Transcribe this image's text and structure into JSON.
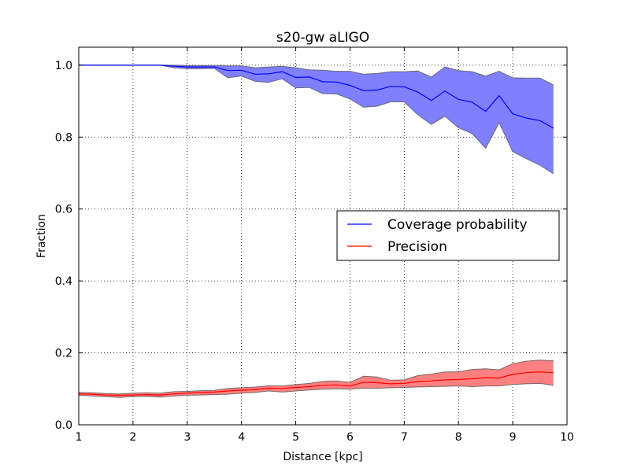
{
  "chart_data": {
    "type": "line",
    "title": "s20-gw aLIGO",
    "xlabel": "Distance [kpc]",
    "ylabel": "Fraction",
    "xlim": [
      1,
      10
    ],
    "ylim": [
      0.0,
      1.05
    ],
    "xticks": [
      "1",
      "2",
      "3",
      "4",
      "5",
      "6",
      "7",
      "8",
      "9",
      "10"
    ],
    "yticks": [
      "0.0",
      "0.2",
      "0.4",
      "0.6",
      "0.8",
      "1.0"
    ],
    "grid": true,
    "legend_position": "center-right",
    "x": [
      1.0,
      1.25,
      1.5,
      1.75,
      2.0,
      2.25,
      2.5,
      2.75,
      3.0,
      3.25,
      3.5,
      3.75,
      4.0,
      4.25,
      4.5,
      4.75,
      5.0,
      5.25,
      5.5,
      5.75,
      6.0,
      6.25,
      6.5,
      6.75,
      7.0,
      7.25,
      7.5,
      7.75,
      8.0,
      8.25,
      8.5,
      8.75,
      9.0,
      9.25,
      9.5,
      9.75
    ],
    "series": [
      {
        "name": "Coverage probability",
        "color": "#0000ff",
        "fill_color": "#8080ff",
        "values": [
          1.0,
          1.0,
          1.0,
          1.0,
          1.0,
          1.0,
          1.0,
          0.997,
          0.995,
          0.995,
          0.995,
          0.985,
          0.986,
          0.975,
          0.976,
          0.982,
          0.966,
          0.967,
          0.954,
          0.953,
          0.944,
          0.929,
          0.931,
          0.941,
          0.94,
          0.925,
          0.902,
          0.928,
          0.905,
          0.897,
          0.872,
          0.915,
          0.865,
          0.853,
          0.846,
          0.825
        ],
        "upper": [
          1.0,
          1.0,
          1.0,
          1.0,
          1.0,
          1.0,
          1.0,
          1.0,
          0.999,
          0.999,
          0.999,
          0.998,
          0.998,
          0.993,
          0.995,
          0.997,
          0.993,
          0.987,
          0.986,
          0.983,
          0.983,
          0.975,
          0.977,
          0.982,
          0.982,
          0.984,
          0.967,
          0.995,
          0.985,
          0.982,
          0.97,
          0.983,
          0.965,
          0.964,
          0.964,
          0.945
        ],
        "lower": [
          1.0,
          1.0,
          1.0,
          1.0,
          1.0,
          1.0,
          1.0,
          0.993,
          0.99,
          0.99,
          0.991,
          0.965,
          0.97,
          0.955,
          0.952,
          0.962,
          0.937,
          0.938,
          0.921,
          0.92,
          0.906,
          0.883,
          0.886,
          0.898,
          0.898,
          0.862,
          0.835,
          0.858,
          0.826,
          0.81,
          0.769,
          0.84,
          0.76,
          0.74,
          0.722,
          0.698
        ]
      },
      {
        "name": "Precision",
        "color": "#ff0000",
        "fill_color": "#ff8080",
        "values": [
          0.086,
          0.085,
          0.083,
          0.082,
          0.083,
          0.084,
          0.083,
          0.086,
          0.088,
          0.09,
          0.091,
          0.094,
          0.096,
          0.098,
          0.102,
          0.101,
          0.104,
          0.106,
          0.11,
          0.111,
          0.108,
          0.118,
          0.117,
          0.114,
          0.115,
          0.12,
          0.122,
          0.125,
          0.126,
          0.128,
          0.131,
          0.13,
          0.14,
          0.145,
          0.147,
          0.145
        ],
        "upper": [
          0.09,
          0.089,
          0.087,
          0.086,
          0.088,
          0.089,
          0.088,
          0.092,
          0.093,
          0.095,
          0.096,
          0.101,
          0.103,
          0.105,
          0.109,
          0.108,
          0.112,
          0.115,
          0.121,
          0.122,
          0.118,
          0.135,
          0.133,
          0.124,
          0.125,
          0.137,
          0.141,
          0.147,
          0.147,
          0.154,
          0.156,
          0.153,
          0.17,
          0.177,
          0.18,
          0.178
        ],
        "lower": [
          0.082,
          0.08,
          0.078,
          0.076,
          0.078,
          0.079,
          0.077,
          0.08,
          0.082,
          0.083,
          0.084,
          0.085,
          0.088,
          0.09,
          0.094,
          0.091,
          0.094,
          0.097,
          0.099,
          0.1,
          0.099,
          0.102,
          0.101,
          0.103,
          0.104,
          0.105,
          0.106,
          0.107,
          0.108,
          0.106,
          0.108,
          0.108,
          0.112,
          0.114,
          0.115,
          0.11
        ]
      }
    ]
  }
}
